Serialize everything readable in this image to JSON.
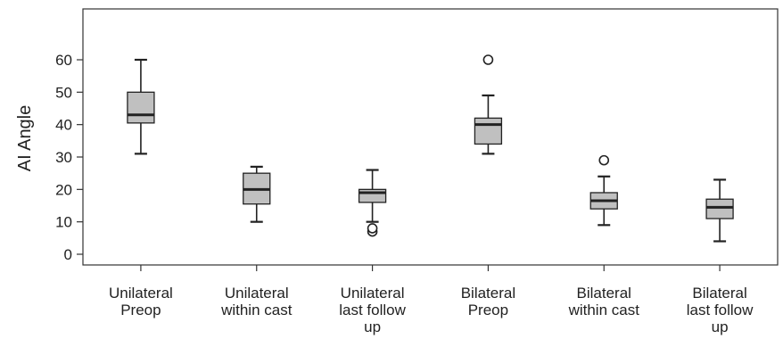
{
  "chart_data": {
    "type": "box",
    "ylabel": "AI Angle",
    "ylim": [
      0,
      62
    ],
    "yticks": [
      0,
      10,
      20,
      30,
      40,
      50,
      60
    ],
    "grid": false,
    "box_color": "#c0c0c0",
    "line_color": "#222222",
    "categories": [
      [
        "Unilateral",
        "Preop"
      ],
      [
        "Unilateral",
        "within cast"
      ],
      [
        "Unilateral",
        "last follow",
        "up"
      ],
      [
        "Bilateral",
        "Preop"
      ],
      [
        "Bilateral",
        "within cast"
      ],
      [
        "Bilateral",
        "last follow",
        "up"
      ]
    ],
    "boxes": [
      {
        "min": 31,
        "q1": 40.5,
        "median": 43,
        "q3": 50,
        "max": 60,
        "outliers": []
      },
      {
        "min": 10,
        "q1": 15.5,
        "median": 20,
        "q3": 25,
        "max": 27,
        "outliers": []
      },
      {
        "min": 10,
        "q1": 16,
        "median": 19,
        "q3": 20,
        "max": 26,
        "outliers": [
          7,
          8
        ]
      },
      {
        "min": 31,
        "q1": 34,
        "median": 40,
        "q3": 42,
        "max": 49,
        "outliers": [
          60
        ]
      },
      {
        "min": 9,
        "q1": 14,
        "median": 16.5,
        "q3": 19,
        "max": 24,
        "outliers": [
          29
        ]
      },
      {
        "min": 4,
        "q1": 11,
        "median": 14.5,
        "q3": 17,
        "max": 23,
        "outliers": []
      }
    ]
  }
}
